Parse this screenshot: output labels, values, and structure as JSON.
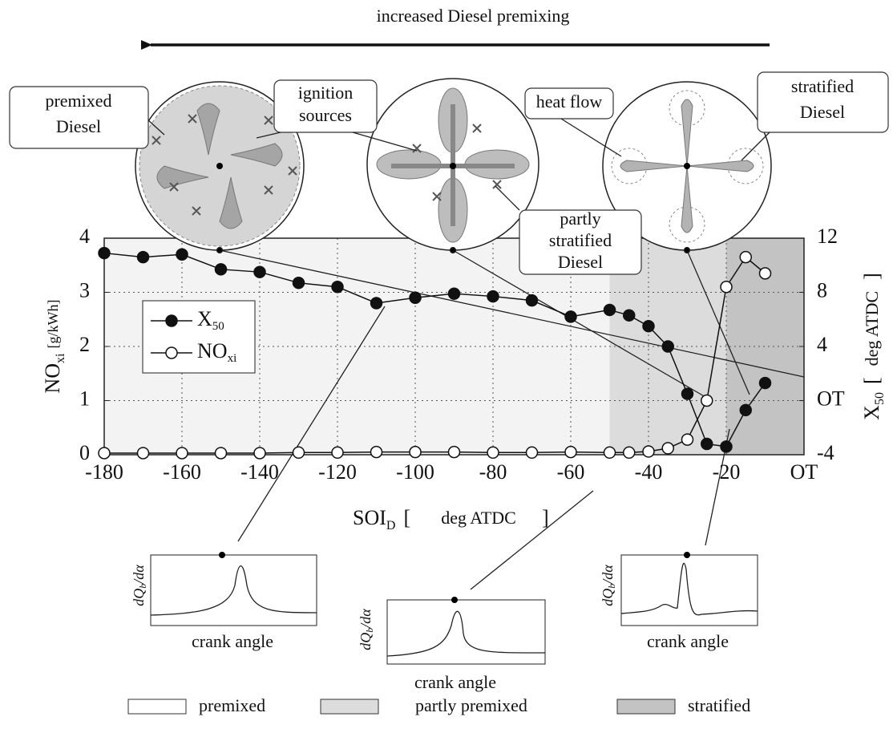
{
  "chart_data": {
    "type": "line",
    "title": "increased Diesel premixing",
    "xlabel": "SOI",
    "xlabel_sub": "D",
    "xlabel_open": "[",
    "xlabel_unit": "deg ATDC",
    "xlabel_close": "]",
    "ylabel": "NO",
    "ylabel_sub": "xi",
    "ylabel_unit": "[g/kWh]",
    "y2label": "X",
    "y2label_sub": "50",
    "y2label_open": "[",
    "y2label_unit": "deg ATDC",
    "y2label_close": "]",
    "xlim": [
      -180,
      0
    ],
    "xticks": [
      -180,
      -160,
      -140,
      -120,
      -100,
      -80,
      -60,
      -40,
      -20,
      {
        "value": 0,
        "label": "OT"
      }
    ],
    "ylim": [
      0,
      4
    ],
    "yticks": [
      0,
      1,
      2,
      3,
      4
    ],
    "y2lim": [
      -4,
      12
    ],
    "y2ticks": [
      -4,
      {
        "value": 0,
        "label": "OT"
      },
      4,
      8,
      12
    ],
    "grid": true,
    "legend": "upper left",
    "x": [
      -180,
      -170,
      -160,
      -150,
      -140,
      -130,
      -120,
      -110,
      -100,
      -90,
      -80,
      -70,
      -60,
      -50,
      -45,
      -40,
      -35,
      -30,
      -25,
      -20,
      -15,
      -10
    ],
    "series": [
      {
        "name": "X",
        "name_sub": "50",
        "color": "#111111",
        "marker": "filled",
        "axis": "y2",
        "values": [
          10.9,
          10.6,
          10.8,
          9.7,
          9.5,
          8.7,
          8.4,
          7.2,
          7.6,
          7.9,
          7.7,
          7.4,
          6.2,
          6.7,
          6.3,
          5.5,
          4.0,
          0.5,
          -3.2,
          -3.4,
          -0.7,
          1.3
        ]
      },
      {
        "name": "NO",
        "name_sub": "xi",
        "color": "#111111",
        "marker": "open",
        "axis": "y",
        "values": [
          0.03,
          0.03,
          0.03,
          0.03,
          0.03,
          0.04,
          0.04,
          0.05,
          0.05,
          0.05,
          0.04,
          0.04,
          0.05,
          0.04,
          0.04,
          0.06,
          0.12,
          0.28,
          1.0,
          3.1,
          3.65,
          3.35
        ]
      }
    ],
    "regions": [
      {
        "name": "premixed",
        "from": -180,
        "to": -50,
        "color": "#f3f3f3"
      },
      {
        "name": "partly premixed",
        "from": -50,
        "to": -20,
        "color": "#dcdcdc"
      },
      {
        "name": "stratified",
        "from": -20,
        "to": 0,
        "color": "#c3c3c3"
      }
    ],
    "callouts": [
      {
        "lines": [
          "premixed",
          "Diesel"
        ]
      },
      {
        "lines": [
          "ignition",
          "sources"
        ]
      },
      {
        "lines": [
          "heat flow"
        ]
      },
      {
        "lines": [
          "stratified",
          "Diesel"
        ]
      },
      {
        "lines": [
          "partly",
          "stratified",
          "Diesel"
        ]
      }
    ],
    "insets": [
      {
        "ylabel": "dQ",
        "ylabel_sub": "b",
        "ylabel_end": "/dα",
        "xlabel": "crank angle"
      },
      {
        "ylabel": "dQ",
        "ylabel_sub": "b",
        "ylabel_end": "/dα",
        "xlabel": "crank angle"
      },
      {
        "ylabel": "dQ",
        "ylabel_sub": "b",
        "ylabel_end": "/dα",
        "xlabel": "crank angle"
      }
    ]
  }
}
